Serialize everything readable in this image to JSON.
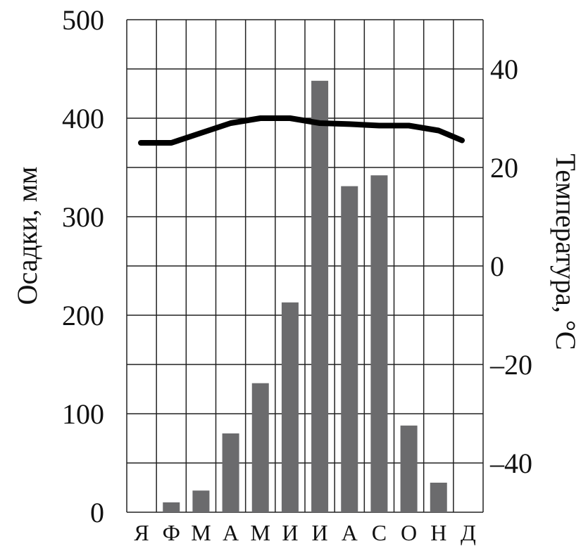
{
  "chart_data": {
    "type": "bar",
    "categories": [
      "Я",
      "Ф",
      "М",
      "А",
      "М",
      "И",
      "И",
      "А",
      "С",
      "О",
      "Н",
      "Д"
    ],
    "series": [
      {
        "type": "bar",
        "axis": "left",
        "values": [
          0,
          10,
          22,
          80,
          131,
          213,
          438,
          331,
          342,
          88,
          30,
          0
        ],
        "color": "#6b6b6d"
      },
      {
        "type": "line",
        "axis": "right",
        "values": [
          25,
          25,
          27,
          29,
          30,
          30,
          29,
          28.8,
          28.5,
          28.5,
          27.5,
          25.5
        ],
        "color": "#000000"
      }
    ],
    "ylabel": "Осадки, мм",
    "y2label": "Температура, °С",
    "ylim": [
      0,
      500
    ],
    "y2lim": [
      -50,
      50
    ],
    "yticks": [
      "0",
      "100",
      "200",
      "300",
      "400",
      "500"
    ],
    "y2ticks": [
      "–40",
      "–20",
      "0",
      "20",
      "40"
    ],
    "y2tick_values": [
      -40,
      -20,
      0,
      20,
      40
    ],
    "grid": true
  }
}
